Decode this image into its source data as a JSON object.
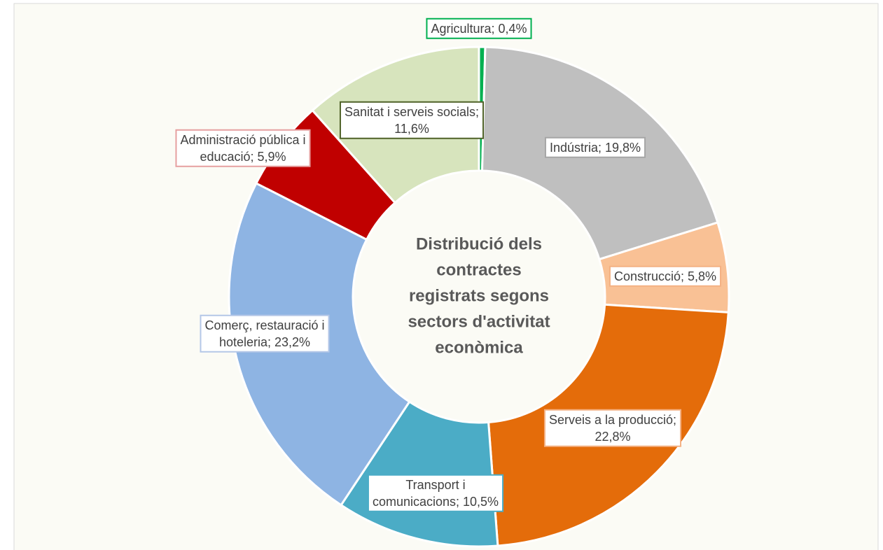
{
  "chart_data": {
    "type": "donut",
    "title": [
      "Distribució dels",
      "contractes",
      "registrats segons",
      "sectors d'activitat",
      "econòmica"
    ],
    "values": [
      0.4,
      19.8,
      5.8,
      22.8,
      10.5,
      23.2,
      5.9,
      11.6
    ],
    "value_labels": [
      [
        "Agricultura; 0,4%"
      ],
      [
        "Indústria; 19,8%"
      ],
      [
        "Construcció; 5,8%"
      ],
      [
        "Serveis a la producció;",
        "22,8%"
      ],
      [
        "Transport i",
        "comunicacions; 10,5%"
      ],
      [
        "Comerç, restauració i",
        "hoteleria; 23,2%"
      ],
      [
        "Administració pública i",
        "educació; 5,9%"
      ],
      [
        "Sanitat i serveis socials;",
        "11,6%"
      ]
    ],
    "colors": [
      "#00b050",
      "#bfbfbf",
      "#f9c195",
      "#e46c0a",
      "#4bacc6",
      "#8eb4e3",
      "#c00000",
      "#d7e4bd"
    ],
    "label_border_colors": [
      "#00b050",
      "#a6a6a6",
      "#f4b183",
      "#f4b183",
      "#4bacc6",
      "#b4c7e7",
      "#e6a0a0",
      "#4f6228"
    ]
  }
}
